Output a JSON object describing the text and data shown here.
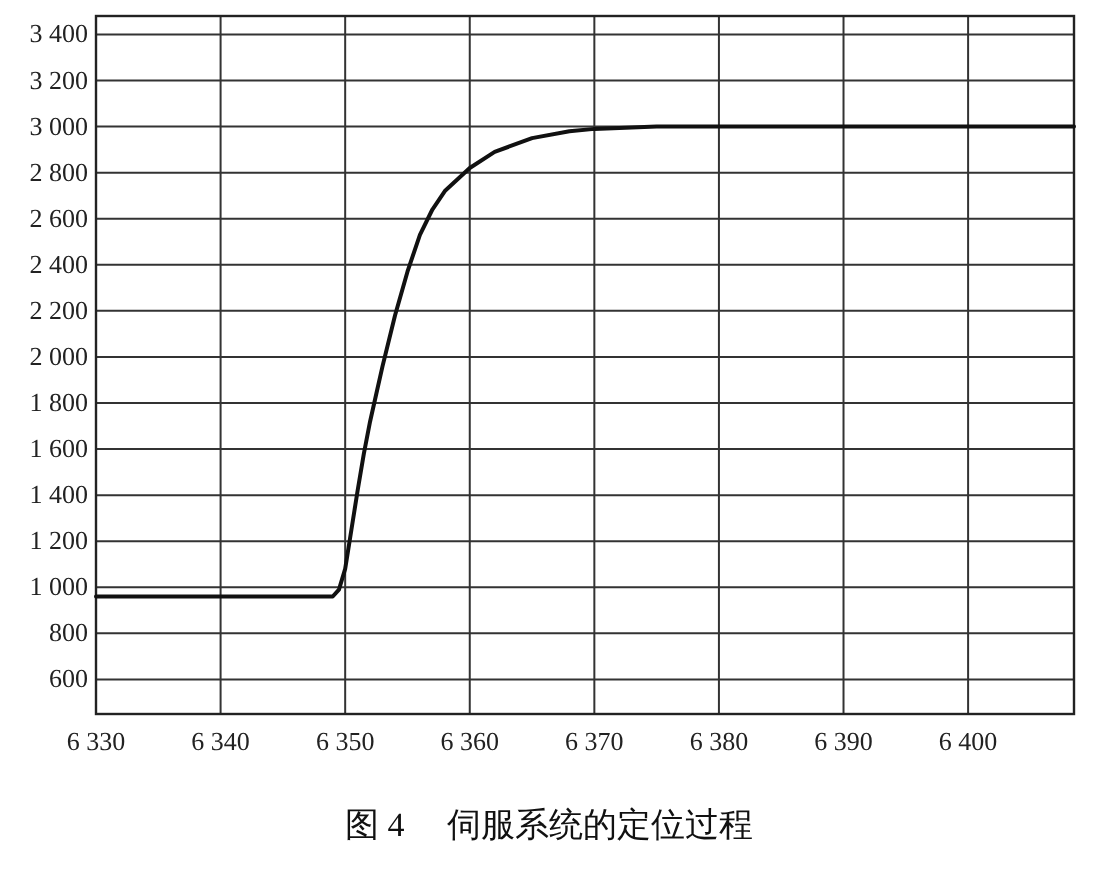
{
  "chart_data": {
    "type": "line",
    "annotations": [
      "图 4　 伺服系统的定位过程"
    ],
    "series": [
      {
        "color": "#111111",
        "x": [
          6330,
          6349,
          6349.5,
          6350,
          6350.5,
          6351,
          6351.5,
          6352,
          6352.5,
          6353,
          6354,
          6355,
          6356,
          6357,
          6358,
          6360,
          6362,
          6365,
          6368,
          6370,
          6375,
          6380,
          6408.5
        ],
        "values": [
          960,
          960,
          990,
          1080,
          1250,
          1420,
          1580,
          1720,
          1840,
          1960,
          2180,
          2370,
          2530,
          2640,
          2720,
          2820,
          2890,
          2950,
          2980,
          2990,
          3000,
          3000,
          3000
        ]
      }
    ],
    "xlim": [
      6330,
      6408.5
    ],
    "ylim": [
      450,
      3480
    ],
    "xticks": [
      {
        "value": 6330,
        "label": "6 330"
      },
      {
        "value": 6340,
        "label": "6 340"
      },
      {
        "value": 6350,
        "label": "6 350"
      },
      {
        "value": 6360,
        "label": "6 360"
      },
      {
        "value": 6370,
        "label": "6 370"
      },
      {
        "value": 6380,
        "label": "6 380"
      },
      {
        "value": 6390,
        "label": "6 390"
      },
      {
        "value": 6400,
        "label": "6 400"
      }
    ],
    "yticks": [
      600,
      800,
      {
        "value": 1000,
        "label": "1 000"
      },
      {
        "value": 1200,
        "label": "1 200"
      },
      {
        "value": 1400,
        "label": "1 400"
      },
      {
        "value": 1600,
        "label": "1 600"
      },
      {
        "value": 1800,
        "label": "1 800"
      },
      {
        "value": 2000,
        "label": "2 000"
      },
      {
        "value": 2200,
        "label": "2 200"
      },
      {
        "value": 2400,
        "label": "2 400"
      },
      {
        "value": 2600,
        "label": "2 600"
      },
      {
        "value": 2800,
        "label": "2 800"
      },
      {
        "value": 3000,
        "label": "3 000"
      },
      {
        "value": 3200,
        "label": "3 200"
      },
      {
        "value": 3400,
        "label": "3 400"
      }
    ],
    "grid": true,
    "line_style": "solid"
  }
}
